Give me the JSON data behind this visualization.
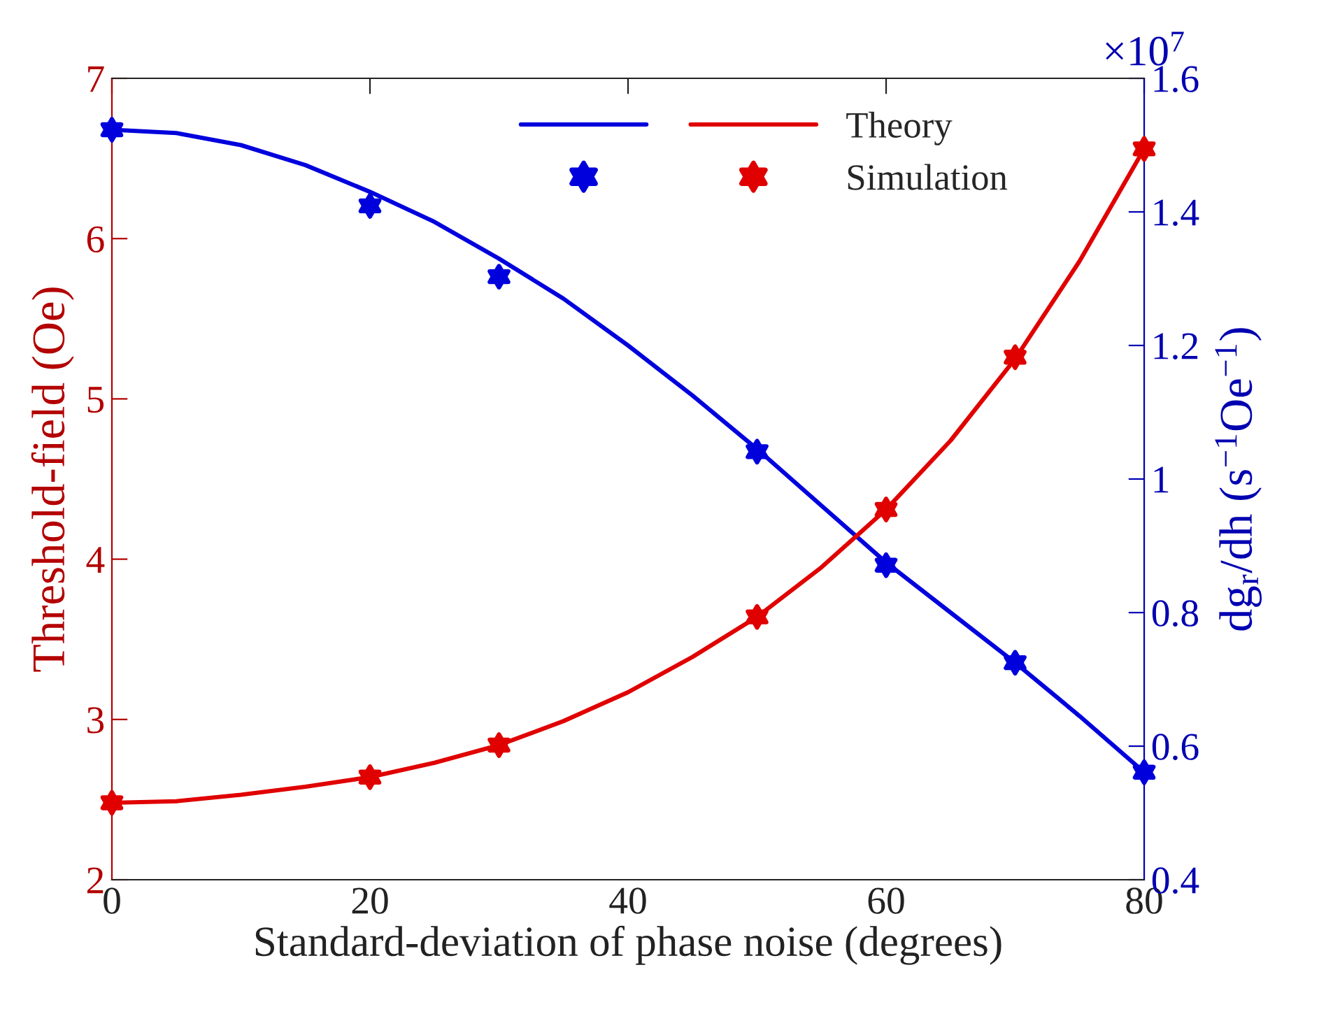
{
  "chart_data": {
    "type": "line",
    "xlabel": "Standard-deviation of phase noise (degrees)",
    "ylabel": "Threshold-field (Oe)",
    "y2label": "dg$_{r}$/dh (s$^{−1}$Oe$^{−1}$)",
    "annotations": [
      "×10$^{7}$"
    ],
    "xlim": [
      0,
      80
    ],
    "xticks": [
      0,
      20,
      40,
      60,
      80
    ],
    "ylim": [
      2,
      7
    ],
    "yticks": [
      2,
      3,
      4,
      5,
      6,
      7
    ],
    "y2lim": [
      0.4,
      1.6
    ],
    "y2ticks": [
      0.4,
      0.6,
      0.8,
      1,
      1.2,
      1.4,
      1.6
    ],
    "grid": false,
    "legend": "top right",
    "series": [
      {
        "axis": "y2",
        "color": "#0000dd",
        "line_style": "solid",
        "marker": "none",
        "x": [
          0,
          5,
          10,
          15,
          20,
          25,
          30,
          35,
          40,
          45,
          50,
          55,
          60,
          65,
          70,
          75,
          80
        ],
        "values": [
          1.523,
          1.518,
          1.5,
          1.47,
          1.43,
          1.385,
          1.33,
          1.27,
          1.2,
          1.125,
          1.045,
          0.96,
          0.875,
          0.8,
          0.725,
          0.645,
          0.561
        ]
      },
      {
        "name": "Theory",
        "axis": "y",
        "color": "#e00000",
        "line_style": "solid",
        "marker": "none",
        "x": [
          0,
          5,
          10,
          15,
          20,
          25,
          30,
          35,
          40,
          45,
          50,
          55,
          60,
          65,
          70,
          75,
          80
        ],
        "values": [
          2.48,
          2.49,
          2.53,
          2.58,
          2.64,
          2.73,
          2.84,
          2.99,
          3.17,
          3.39,
          3.64,
          3.95,
          4.31,
          4.74,
          5.25,
          5.86,
          6.56
        ]
      },
      {
        "type": "scatter",
        "axis": "y2",
        "color": "#0000dd",
        "marker": "star",
        "x": [
          0,
          20,
          30,
          50,
          60,
          70,
          80
        ],
        "values": [
          1.523,
          1.409,
          1.303,
          1.041,
          0.871,
          0.725,
          0.561
        ]
      },
      {
        "name": "Simulation",
        "type": "scatter",
        "axis": "y",
        "color": "#e00000",
        "marker": "star",
        "x": [
          0,
          20,
          30,
          50,
          60,
          70,
          80
        ],
        "values": [
          2.48,
          2.64,
          2.84,
          3.64,
          4.31,
          5.26,
          6.56
        ]
      }
    ]
  }
}
